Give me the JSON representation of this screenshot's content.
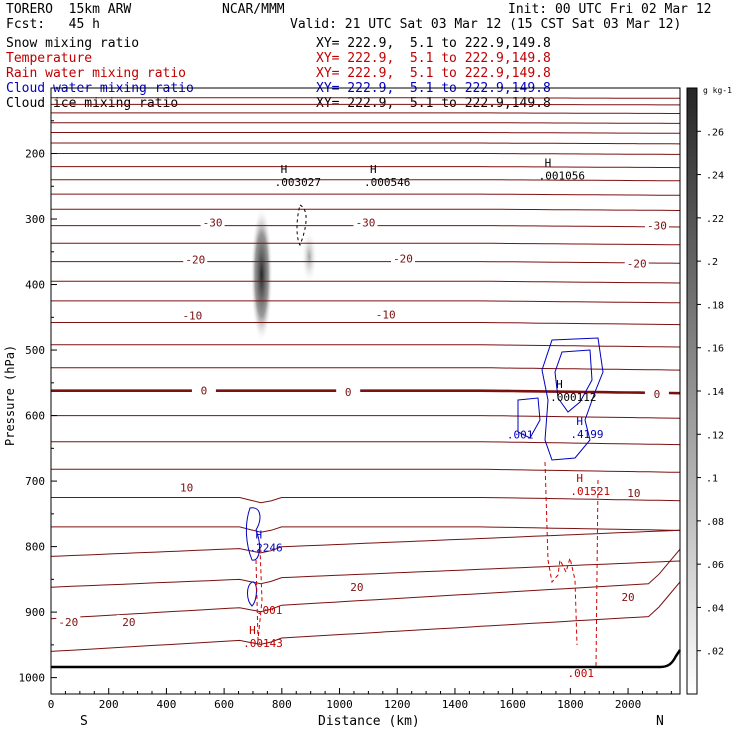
{
  "header": {
    "model": "TORERO  15km ARW",
    "center": "NCAR/MMM",
    "init": "Init: 00 UTC Fri 02 Mar 12",
    "fcst": "Fcst:   45 h",
    "valid": "Valid: 21 UTC Sat 03 Mar 12 (15 CST Sat 03 Mar 12)"
  },
  "fields": [
    {
      "name": "Snow mixing ratio",
      "xy": "XY= 222.9,  5.1 to 222.9,149.8",
      "color": "#000000"
    },
    {
      "name": "Temperature",
      "xy": "XY= 222.9,  5.1 to 222.9,149.8",
      "color": "#c00000"
    },
    {
      "name": "Rain water mixing ratio",
      "xy": "XY= 222.9,  5.1 to 222.9,149.8",
      "color": "#c00000"
    },
    {
      "name": "Cloud water mixing ratio",
      "xy": "XY= 222.9,  5.1 to 222.9,149.8",
      "color": "#0000c0"
    },
    {
      "name": "Cloud ice mixing ratio",
      "xy": "XY= 222.9,  5.1 to 222.9,149.8",
      "color": "#000000"
    }
  ],
  "chart_data": {
    "type": "cross-section",
    "xlabel": "Distance (km)",
    "ylabel": "Pressure (hPa)",
    "x_end_left": "S",
    "x_end_right": "N",
    "xticks": [
      0,
      200,
      400,
      600,
      800,
      1000,
      1200,
      1400,
      1600,
      1800,
      2000
    ],
    "xlim": [
      0,
      2180
    ],
    "yticks": [
      200,
      300,
      400,
      500,
      600,
      700,
      800,
      900,
      1000
    ],
    "ylim": [
      1025,
      100
    ],
    "colorbar": {
      "unit": "g kg-1",
      "ticks": [
        ".26",
        ".24",
        ".22",
        ".2",
        ".18",
        ".16",
        ".14",
        ".12",
        ".1",
        ".08",
        ".06",
        ".04",
        ".02"
      ],
      "values": [
        0.26,
        0.24,
        0.22,
        0.2,
        0.18,
        0.16,
        0.14,
        0.12,
        0.1,
        0.08,
        0.06,
        0.04,
        0.02
      ],
      "range": [
        0,
        0.28
      ]
    },
    "temperature_labels": [
      {
        "text": "-30",
        "x": 560,
        "p": 305
      },
      {
        "text": "-30",
        "x": 1090,
        "p": 305
      },
      {
        "text": "-30",
        "x": 2100,
        "p": 310
      },
      {
        "text": "-20",
        "x": 500,
        "p": 362
      },
      {
        "text": "-20",
        "x": 1220,
        "p": 360
      },
      {
        "text": "-20",
        "x": 2030,
        "p": 368
      },
      {
        "text": "-10",
        "x": 490,
        "p": 447
      },
      {
        "text": "-10",
        "x": 1160,
        "p": 446
      },
      {
        "text": "0",
        "x": 530,
        "p": 562
      },
      {
        "text": "0",
        "x": 1030,
        "p": 564
      },
      {
        "text": "0",
        "x": 2100,
        "p": 567
      },
      {
        "text": "10",
        "x": 470,
        "p": 710
      },
      {
        "text": "10",
        "x": 2020,
        "p": 718
      },
      {
        "text": "20",
        "x": 1060,
        "p": 862
      },
      {
        "text": "20",
        "x": 2000,
        "p": 877
      },
      {
        "text": "-20",
        "x": 60,
        "p": 915
      },
      {
        "text": "20",
        "x": 270,
        "p": 915
      }
    ],
    "maxima": [
      {
        "text": ".003027",
        "x": 775,
        "p": 245,
        "color": "#000000"
      },
      {
        "text": ".000546",
        "x": 1085,
        "p": 245,
        "color": "#000000"
      },
      {
        "text": ".001056",
        "x": 1690,
        "p": 235,
        "color": "#000000"
      },
      {
        "text": ".000112",
        "x": 1730,
        "p": 573,
        "color": "#000000"
      },
      {
        "text": ".4199",
        "x": 1800,
        "p": 630,
        "color": "#0000c0"
      },
      {
        "text": ".01521",
        "x": 1800,
        "p": 717,
        "color": "#c00000"
      },
      {
        "text": ".2246",
        "x": 688,
        "p": 803,
        "color": "#0000c0"
      },
      {
        "text": ".00143",
        "x": 666,
        "p": 949,
        "color": "#c00000"
      }
    ],
    "contour_labels": [
      {
        "text": ".001",
        "x": 1580,
        "p": 629,
        "color": "#0000c0"
      },
      {
        "text": ".001",
        "x": 710,
        "p": 897,
        "color": "#c00000"
      },
      {
        "text": ".001",
        "x": 1790,
        "p": 993,
        "color": "#c00000"
      }
    ],
    "snow_columns": [
      {
        "x": 730,
        "p_top": 280,
        "p_bottom": 490,
        "max": 0.22
      },
      {
        "x": 895,
        "p_top": 315,
        "p_bottom": 400,
        "max": 0.07
      }
    ]
  }
}
